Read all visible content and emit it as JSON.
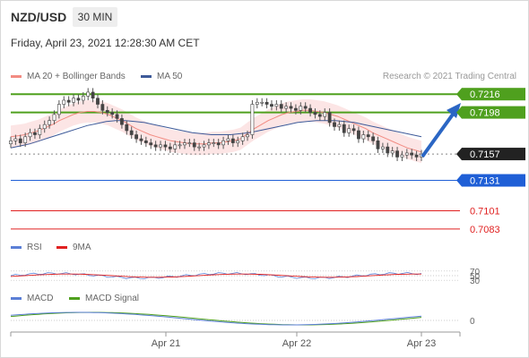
{
  "header": {
    "symbol": "NZD/USD",
    "timeframe": "30 MIN"
  },
  "datetime": "Friday, April 23, 2021 12:28:30 AM CET",
  "legend": {
    "ma20": {
      "label": "MA 20 + Bollinger Bands",
      "color": "#f28b82"
    },
    "ma50": {
      "label": "MA 50",
      "color": "#3d5a99"
    },
    "credit": "Research © 2021 Trading Central"
  },
  "indicators": {
    "rsi": {
      "label": "RSI",
      "color": "#5b7fd6",
      "levels": [
        "70",
        "50",
        "30"
      ]
    },
    "rsi_ma": {
      "label": "9MA",
      "color": "#e02020"
    },
    "macd": {
      "label": "MACD",
      "color": "#5b7fd6",
      "zero": "0"
    },
    "macd_signal": {
      "label": "MACD Signal",
      "color": "#4fa01e"
    }
  },
  "chart_data": {
    "type": "candlestick",
    "x_ticks": [
      "Apr 21",
      "Apr 22",
      "Apr 23"
    ],
    "ylim": [
      0.7075,
      0.7225
    ],
    "price_levels": [
      {
        "value": "0.7216",
        "kind": "resistance",
        "color": "#4fa01e"
      },
      {
        "value": "0.7198",
        "kind": "resistance",
        "color": "#4fa01e"
      },
      {
        "value": "0.7157",
        "kind": "current",
        "color": "#222222"
      },
      {
        "value": "0.7131",
        "kind": "support",
        "color": "#1f5fd6"
      },
      {
        "value": "0.7101",
        "kind": "support",
        "color": "#e02020"
      },
      {
        "value": "0.7083",
        "kind": "support",
        "color": "#e02020"
      }
    ],
    "close": [
      0.717,
      0.7172,
      0.7168,
      0.7174,
      0.7178,
      0.7176,
      0.7182,
      0.7186,
      0.719,
      0.7196,
      0.7206,
      0.721,
      0.7208,
      0.7212,
      0.721,
      0.7214,
      0.7218,
      0.7212,
      0.7206,
      0.72,
      0.7198,
      0.7196,
      0.7192,
      0.7186,
      0.718,
      0.7176,
      0.7172,
      0.717,
      0.7168,
      0.7166,
      0.7164,
      0.7166,
      0.7164,
      0.7162,
      0.7166,
      0.7166,
      0.7168,
      0.7168,
      0.7164,
      0.7164,
      0.7166,
      0.7168,
      0.7168,
      0.7166,
      0.717,
      0.7172,
      0.7168,
      0.717,
      0.7174,
      0.7176,
      0.7206,
      0.7208,
      0.7208,
      0.7206,
      0.7204,
      0.7206,
      0.7202,
      0.7204,
      0.7202,
      0.72,
      0.7204,
      0.7202,
      0.7198,
      0.7196,
      0.7194,
      0.7198,
      0.7188,
      0.7184,
      0.7186,
      0.7178,
      0.7182,
      0.718,
      0.7172,
      0.7176,
      0.7174,
      0.717,
      0.7162,
      0.7164,
      0.7158,
      0.716,
      0.7154,
      0.7156,
      0.7158,
      0.7156,
      0.7154,
      0.7157
    ],
    "ma20": [
      0.7174,
      0.7175,
      0.7176,
      0.7178,
      0.718,
      0.7183,
      0.7186,
      0.719,
      0.7193,
      0.7196,
      0.7198,
      0.7199,
      0.7199,
      0.7198,
      0.7196,
      0.7193,
      0.719,
      0.7186,
      0.7182,
      0.7179,
      0.7176,
      0.7174,
      0.7172,
      0.717,
      0.7169,
      0.7168,
      0.7167,
      0.7167,
      0.7167,
      0.7168,
      0.7168,
      0.7169,
      0.717,
      0.7172,
      0.7177,
      0.7182,
      0.7186,
      0.719,
      0.7193,
      0.7196,
      0.7198,
      0.7199,
      0.72,
      0.72,
      0.7199,
      0.7198,
      0.7196,
      0.7194,
      0.7191,
      0.7188,
      0.7185,
      0.7182,
      0.7178,
      0.7175,
      0.7172,
      0.7169,
      0.7166,
      0.7163,
      0.7161,
      0.7159
    ],
    "ma50": [
      0.7163,
      0.7165,
      0.7167,
      0.717,
      0.7173,
      0.7176,
      0.7179,
      0.7182,
      0.7185,
      0.7187,
      0.7189,
      0.719,
      0.719,
      0.7189,
      0.7188,
      0.7186,
      0.7184,
      0.7182,
      0.718,
      0.7178,
      0.7177,
      0.7176,
      0.7176,
      0.7176,
      0.7177,
      0.7178,
      0.718,
      0.7182,
      0.7184,
      0.7186,
      0.7188,
      0.7189,
      0.719,
      0.719,
      0.719,
      0.7189,
      0.7188,
      0.7186,
      0.7184,
      0.7182,
      0.718,
      0.7178,
      0.7176,
      0.7174
    ]
  }
}
